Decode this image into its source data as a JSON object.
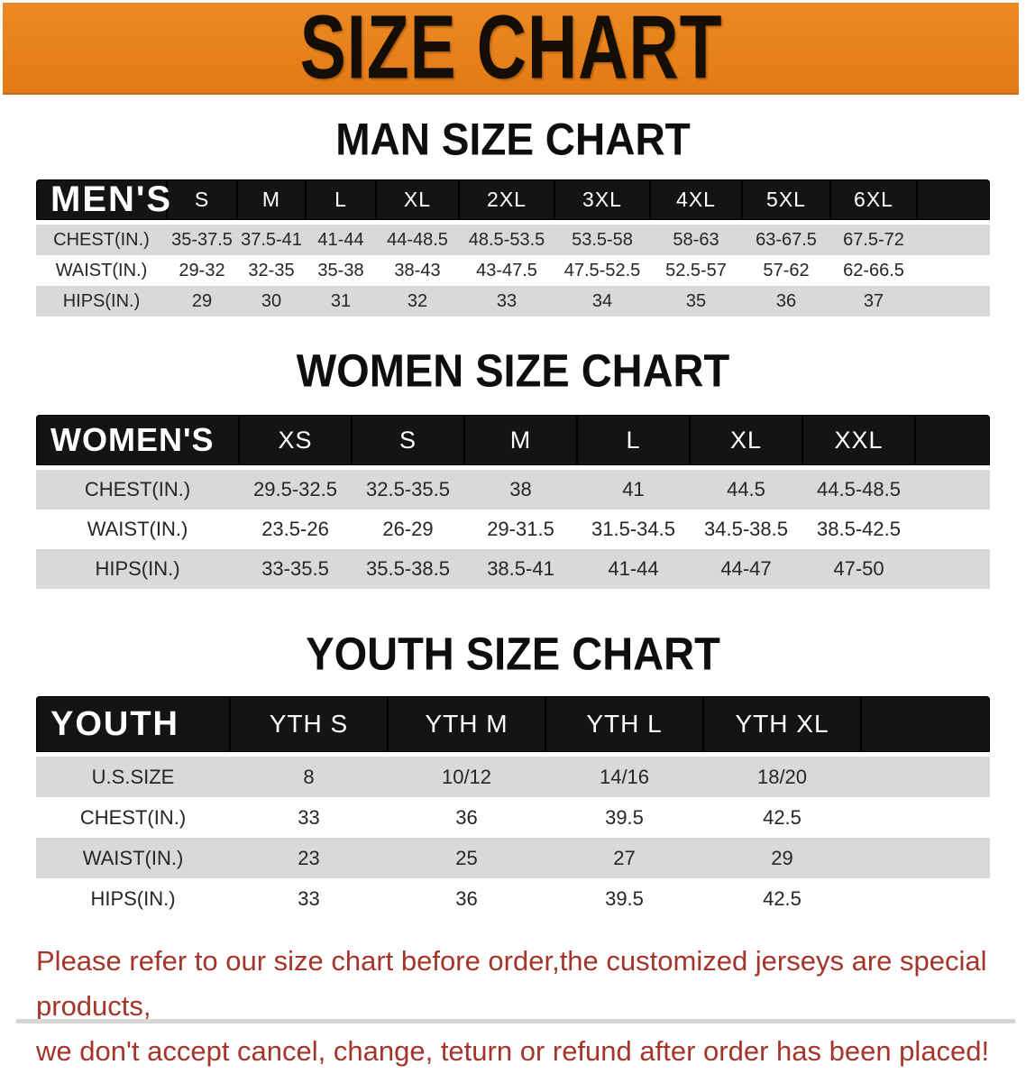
{
  "banner": {
    "title": "SIZE CHART"
  },
  "tables": {
    "men": {
      "title": "MAN SIZE CHART",
      "header_label": "MEN'S",
      "columns": [
        "S",
        "M",
        "L",
        "XL",
        "2XL",
        "3XL",
        "4XL",
        "5XL",
        "6XL"
      ],
      "rows": [
        {
          "label": "CHEST(IN.)",
          "values": [
            "35-37.5",
            "37.5-41",
            "41-44",
            "44-48.5",
            "48.5-53.5",
            "53.5-58",
            "58-63",
            "63-67.5",
            "67.5-72"
          ]
        },
        {
          "label": "WAIST(IN.)",
          "values": [
            "29-32",
            "32-35",
            "35-38",
            "38-43",
            "43-47.5",
            "47.5-52.5",
            "52.5-57",
            "57-62",
            "62-66.5"
          ]
        },
        {
          "label": "HIPS(IN.)",
          "values": [
            "29",
            "30",
            "31",
            "32",
            "33",
            "34",
            "35",
            "36",
            "37"
          ]
        }
      ]
    },
    "women": {
      "title": "WOMEN SIZE CHART",
      "header_label": "WOMEN'S",
      "columns": [
        "XS",
        "S",
        "M",
        "L",
        "XL",
        "XXL"
      ],
      "rows": [
        {
          "label": "CHEST(IN.)",
          "values": [
            "29.5-32.5",
            "32.5-35.5",
            "38",
            "41",
            "44.5",
            "44.5-48.5"
          ]
        },
        {
          "label": "WAIST(IN.)",
          "values": [
            "23.5-26",
            "26-29",
            "29-31.5",
            "31.5-34.5",
            "34.5-38.5",
            "38.5-42.5"
          ]
        },
        {
          "label": "HIPS(IN.)",
          "values": [
            "33-35.5",
            "35.5-38.5",
            "38.5-41",
            "41-44",
            "44-47",
            "47-50"
          ]
        }
      ]
    },
    "youth": {
      "title": "YOUTH SIZE CHART",
      "header_label": "YOUTH",
      "columns": [
        "YTH S",
        "YTH M",
        "YTH L",
        "YTH XL"
      ],
      "rows": [
        {
          "label": "U.S.SIZE",
          "values": [
            "8",
            "10/12",
            "14/16",
            "18/20"
          ]
        },
        {
          "label": "CHEST(IN.)",
          "values": [
            "33",
            "36",
            "39.5",
            "42.5"
          ]
        },
        {
          "label": "WAIST(IN.)",
          "values": [
            "23",
            "25",
            "27",
            "29"
          ]
        },
        {
          "label": "HIPS(IN.)",
          "values": [
            "33",
            "36",
            "39.5",
            "42.5"
          ]
        }
      ]
    }
  },
  "footer": {
    "line1": "Please refer to our size chart before order,the customized jerseys are special products,",
    "line2": "we don't accept cancel, change, teturn or refund after order has been placed!"
  },
  "colors": {
    "banner_orange": "#e8811e",
    "table_header_black": "#141414",
    "stripe_gray": "#d9d9d9",
    "footer_red": "#a5342a"
  }
}
